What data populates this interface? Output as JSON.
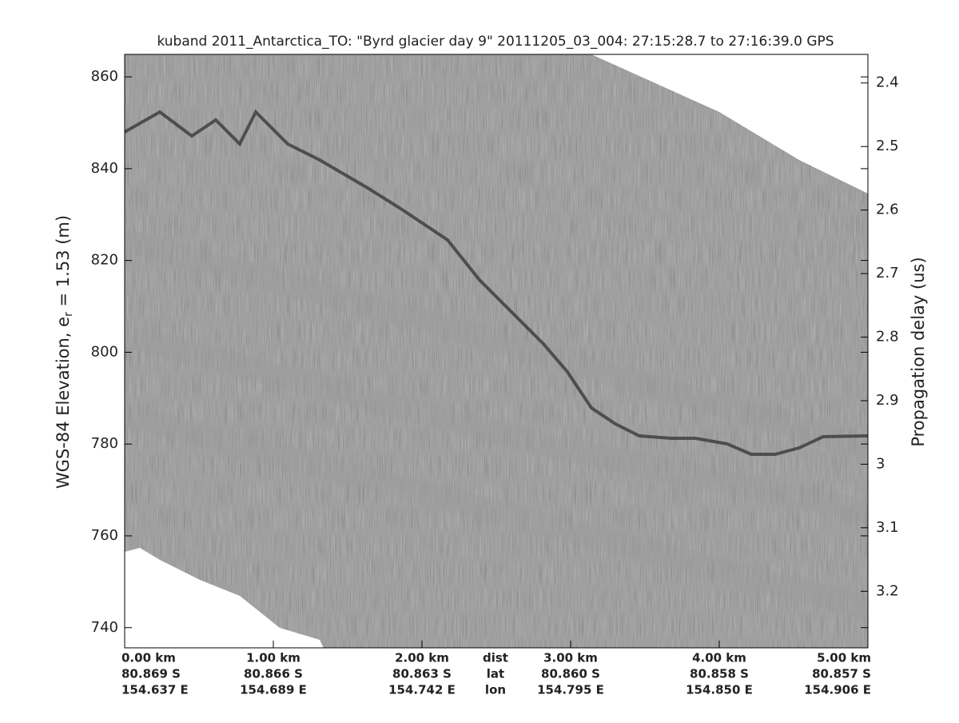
{
  "chart_data": {
    "type": "echogram",
    "title": "kuband 2011_Antarctica_TO: \"Byrd glacier day 9\"  20111205_03_004: 27:15:28.7 to 27:16:39.0 GPS",
    "ylabel": [
      "WGS-84 Elevation, e",
      "r",
      " = 1.53 (m)"
    ],
    "y2label": "Propagation delay (us)",
    "ylim": [
      735.6,
      864.9
    ],
    "yticks": [
      740,
      760,
      780,
      800,
      820,
      840,
      860
    ],
    "y2lim": [
      3.289,
      2.355
    ],
    "y2ticks": [
      2.4,
      2.5,
      2.6,
      2.7,
      2.8,
      2.9,
      3,
      3.1,
      3.2
    ],
    "xlim": [
      0,
      5
    ],
    "xticks": [
      {
        "value": 0,
        "label": "0.00 km"
      },
      {
        "value": 1,
        "label": "1.00 km"
      },
      {
        "value": 2,
        "label": "2.00 km"
      },
      {
        "value": 3,
        "label": "3.00 km"
      },
      {
        "value": 4,
        "label": "4.00 km"
      },
      {
        "value": 5,
        "label": "5.00 km"
      }
    ],
    "row_names": [
      "dist",
      "lat",
      "lon"
    ],
    "lat": [
      "80.869 S",
      "80.866 S",
      "80.863 S",
      "80.860 S",
      "80.858 S",
      "80.857 S"
    ],
    "lon": [
      "154.637 E",
      "154.689 E",
      "154.742 E",
      "154.795 E",
      "154.850 E",
      "154.906 E"
    ]
  }
}
